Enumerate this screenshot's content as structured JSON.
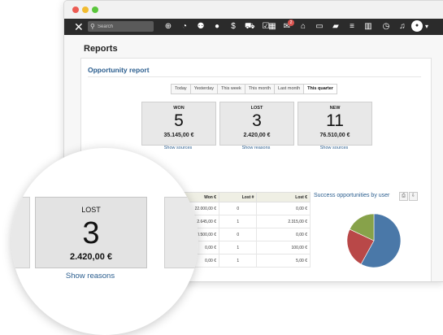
{
  "search": {
    "placeholder": "Search"
  },
  "nav": {
    "badge_count": "2",
    "icons": [
      "plus-icon",
      "dashboard-icon",
      "users-icon",
      "user-icon",
      "money-icon",
      "cart-icon",
      "checklist-icon",
      "calendar-icon",
      "chat-icon",
      "basket-icon",
      "box-icon",
      "folder-icon",
      "list-icon",
      "bar-chart-icon",
      "clock-icon",
      "bell-icon"
    ]
  },
  "page": {
    "title": "Reports"
  },
  "report": {
    "title": "Opportunity report",
    "tabs": [
      {
        "label": "Today",
        "active": false
      },
      {
        "label": "Yesterday",
        "active": false
      },
      {
        "label": "This week",
        "active": false
      },
      {
        "label": "This month",
        "active": false
      },
      {
        "label": "Last month",
        "active": false
      },
      {
        "label": "This quarter",
        "active": true
      }
    ],
    "cards": [
      {
        "label": "WON",
        "count": "5",
        "amount": "35.145,00 €",
        "link": "Show sources"
      },
      {
        "label": "LOST",
        "count": "3",
        "amount": "2.420,00 €",
        "link": "Show reasons"
      },
      {
        "label": "NEW",
        "count": "11",
        "amount": "76.510,00 €",
        "link": "Show sources"
      }
    ]
  },
  "table": {
    "headers": [
      "Won €",
      "Lost #",
      "Lost €"
    ],
    "rows": [
      [
        "22.000,00 €",
        "0",
        "0,00 €"
      ],
      [
        "2.645,00 €",
        "1",
        "2.315,00 €"
      ],
      [
        "10.500,00 €",
        "0",
        "0,00 €"
      ],
      [
        "0,00 €",
        "1",
        "100,00 €"
      ],
      [
        "0,00 €",
        "1",
        "5,00 €"
      ]
    ]
  },
  "chart_data": {
    "type": "pie",
    "title": "Success opportunities by user",
    "values": [
      58,
      24,
      18
    ],
    "colors": [
      "#4a78a8",
      "#b94848",
      "#87a24a"
    ]
  },
  "zoom": {
    "label": "LOST",
    "count": "3",
    "amount": "2.420,00 €",
    "link": "Show reasons"
  }
}
